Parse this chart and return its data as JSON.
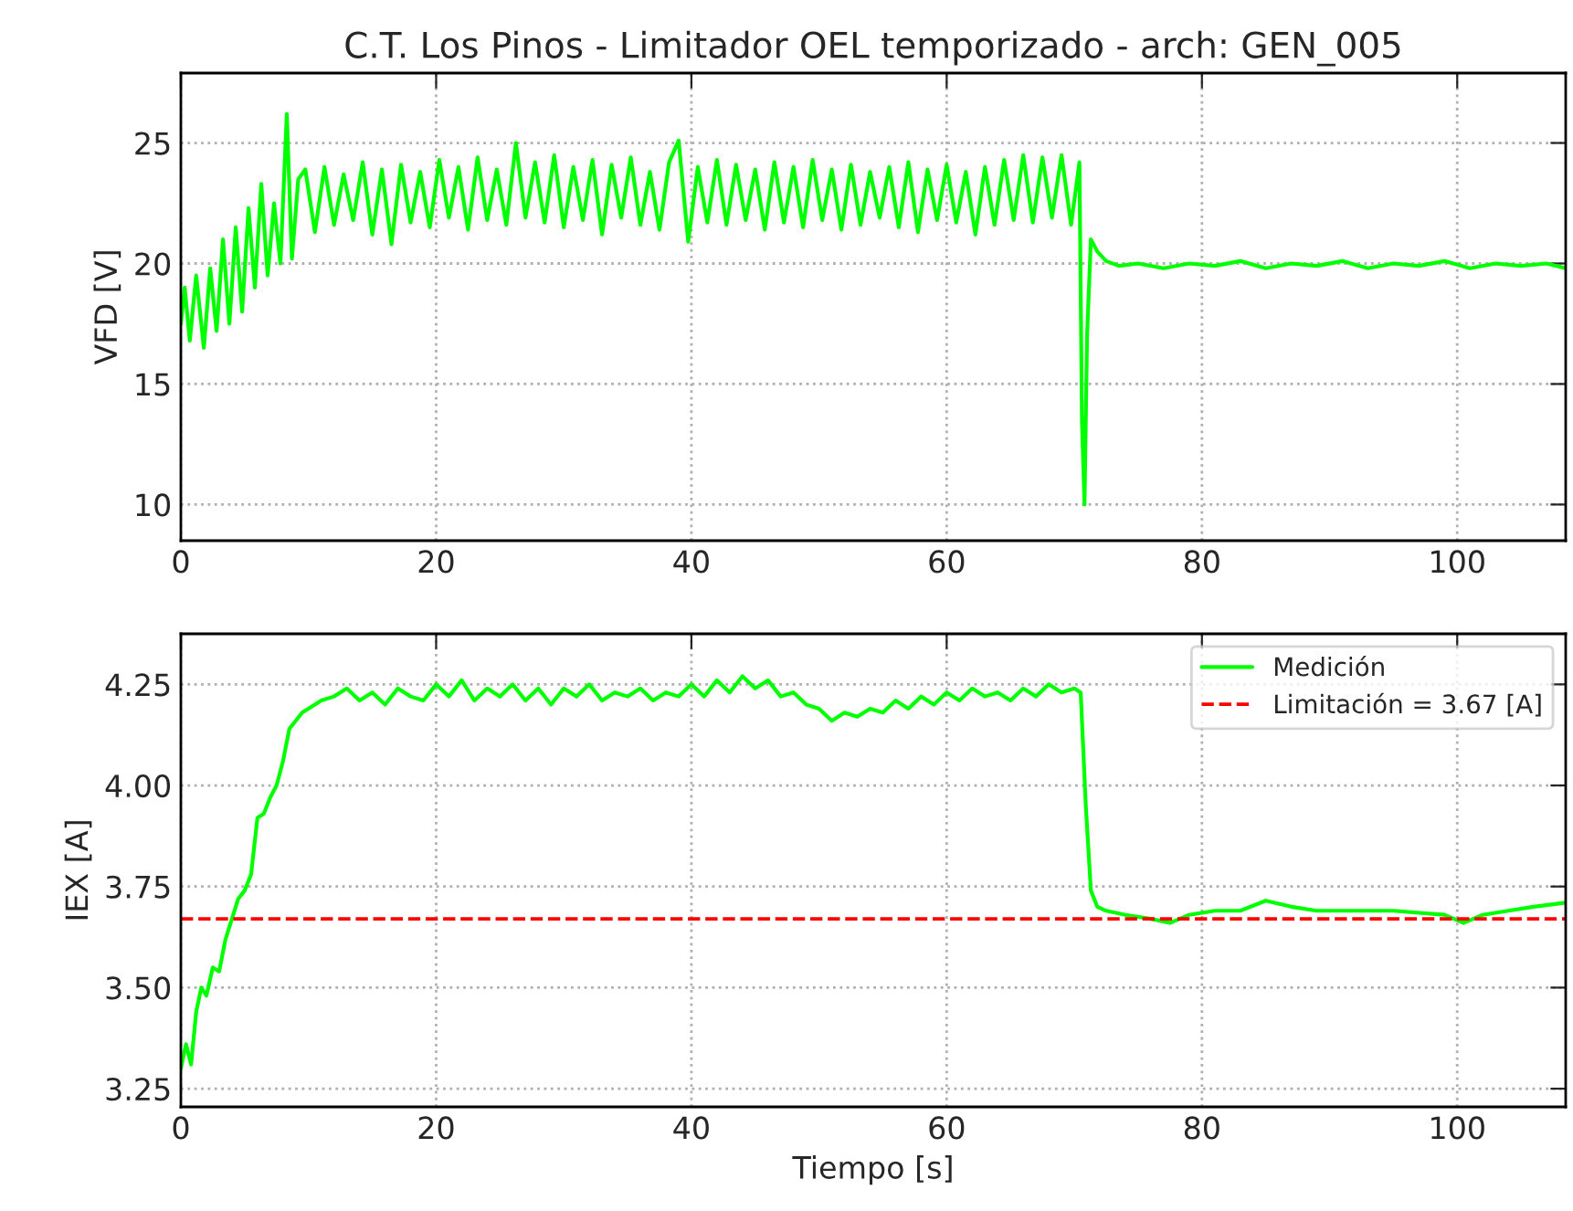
{
  "chart_data": [
    {
      "type": "line",
      "title": "C.T. Los Pinos - Limitador OEL temporizado - arch: GEN_005",
      "ylabel": "VFD [V]",
      "series": [
        {
          "color": "#00ff00",
          "x": [
            0,
            0.3,
            0.7,
            1.2,
            1.8,
            2.3,
            2.8,
            3.3,
            3.8,
            4.3,
            4.8,
            5.3,
            5.8,
            6.3,
            6.8,
            7.3,
            7.8,
            8.3,
            8.7,
            9.2,
            9.75,
            10.5,
            11.25,
            12,
            12.75,
            13.5,
            14.25,
            15,
            15.75,
            16.5,
            17.25,
            18,
            18.75,
            19.5,
            20.25,
            21,
            21.75,
            22.5,
            23.25,
            24,
            24.75,
            25.5,
            26.25,
            27,
            27.75,
            28.5,
            29.25,
            30,
            30.75,
            31.5,
            32.25,
            33,
            33.75,
            34.5,
            35.25,
            36,
            36.75,
            37.5,
            38.25,
            39,
            39.75,
            40.5,
            41.25,
            42,
            42.75,
            43.5,
            44.25,
            45,
            45.75,
            46.5,
            47.25,
            48,
            48.75,
            49.5,
            50.25,
            51,
            51.75,
            52.5,
            53.25,
            54,
            54.75,
            55.5,
            56.25,
            57,
            57.75,
            58.5,
            59.25,
            60,
            60.75,
            61.5,
            62.25,
            63,
            63.75,
            64.5,
            65.25,
            66,
            66.75,
            67.5,
            68.25,
            69,
            69.75,
            70.4,
            70.6,
            70.8,
            71.0,
            71.3,
            71.8,
            72.5,
            73.5,
            75,
            77,
            79,
            81,
            83,
            85,
            87,
            89,
            91,
            93,
            95,
            97,
            99,
            101,
            103,
            105,
            107,
            108.5
          ],
          "values": [
            17.5,
            19.0,
            16.8,
            19.5,
            16.5,
            19.8,
            17.2,
            21.0,
            17.5,
            21.5,
            18.0,
            22.3,
            19.0,
            23.3,
            19.5,
            22.5,
            20.0,
            26.2,
            20.2,
            23.5,
            23.9,
            21.3,
            24.0,
            21.6,
            23.7,
            21.8,
            24.2,
            21.2,
            23.9,
            20.8,
            24.1,
            21.7,
            23.8,
            21.5,
            24.3,
            21.9,
            24.0,
            21.4,
            24.4,
            21.8,
            23.9,
            21.6,
            25.0,
            21.9,
            24.2,
            21.7,
            24.5,
            21.5,
            24.0,
            21.8,
            24.3,
            21.2,
            24.1,
            21.9,
            24.4,
            21.6,
            23.8,
            21.4,
            24.2,
            25.1,
            20.9,
            24.0,
            21.7,
            24.3,
            21.6,
            24.1,
            21.8,
            23.9,
            21.4,
            24.2,
            21.7,
            24.0,
            21.5,
            24.3,
            21.8,
            23.9,
            21.4,
            24.1,
            21.6,
            23.8,
            21.9,
            24.0,
            21.5,
            24.2,
            21.3,
            23.9,
            21.8,
            24.1,
            21.7,
            23.8,
            21.2,
            24.0,
            21.6,
            24.3,
            21.8,
            24.5,
            21.7,
            24.4,
            21.9,
            24.5,
            21.6,
            24.2,
            13.5,
            10.0,
            17.0,
            21.0,
            20.5,
            20.1,
            19.9,
            20.0,
            19.8,
            20.0,
            19.9,
            20.1,
            19.8,
            20.0,
            19.9,
            20.1,
            19.8,
            20.0,
            19.9,
            20.1,
            19.8,
            20.0,
            19.9,
            20.0,
            19.8
          ]
        }
      ],
      "xlim": [
        0,
        108.5
      ],
      "xticks": [
        0,
        20,
        40,
        60,
        80,
        100
      ],
      "ylim": [
        8.5,
        27.9
      ],
      "yticks": [
        10,
        15,
        20,
        25
      ],
      "grid": true,
      "line_style": "solid"
    },
    {
      "type": "line",
      "xlabel": "Tiempo [s]",
      "ylabel": "IEX [A]",
      "series": [
        {
          "name": "Medición",
          "color": "#00ff00",
          "x": [
            0,
            0.4,
            0.8,
            1.2,
            1.6,
            2.0,
            2.5,
            3.0,
            3.5,
            4.0,
            4.5,
            5.0,
            5.5,
            6.0,
            6.5,
            7.0,
            7.5,
            8.0,
            8.5,
            9.0,
            9.5,
            10,
            11,
            12,
            13,
            14,
            15,
            16,
            17,
            18,
            19,
            20,
            21,
            22,
            23,
            24,
            25,
            26,
            27,
            28,
            29,
            30,
            31,
            32,
            33,
            34,
            35,
            36,
            37,
            38,
            39,
            40,
            41,
            42,
            43,
            44,
            45,
            46,
            47,
            48,
            49,
            50,
            51,
            52,
            53,
            54,
            55,
            56,
            57,
            58,
            59,
            60,
            61,
            62,
            63,
            64,
            65,
            66,
            67,
            68,
            69,
            70,
            70.5,
            70.9,
            71.3,
            71.8,
            72.5,
            74,
            76,
            77.5,
            79,
            81,
            83,
            85,
            87,
            89,
            91,
            93,
            95,
            97,
            99,
            100.5,
            102,
            104,
            106,
            108.5
          ],
          "values": [
            3.3,
            3.36,
            3.31,
            3.44,
            3.5,
            3.48,
            3.55,
            3.54,
            3.62,
            3.67,
            3.72,
            3.74,
            3.78,
            3.92,
            3.93,
            3.97,
            4.0,
            4.06,
            4.14,
            4.16,
            4.18,
            4.19,
            4.21,
            4.22,
            4.24,
            4.21,
            4.23,
            4.2,
            4.24,
            4.22,
            4.21,
            4.25,
            4.22,
            4.26,
            4.21,
            4.24,
            4.22,
            4.25,
            4.21,
            4.24,
            4.2,
            4.24,
            4.22,
            4.25,
            4.21,
            4.23,
            4.22,
            4.24,
            4.21,
            4.23,
            4.22,
            4.25,
            4.22,
            4.26,
            4.23,
            4.27,
            4.24,
            4.26,
            4.22,
            4.23,
            4.2,
            4.19,
            4.16,
            4.18,
            4.17,
            4.19,
            4.18,
            4.21,
            4.19,
            4.22,
            4.2,
            4.23,
            4.21,
            4.24,
            4.22,
            4.23,
            4.21,
            4.24,
            4.22,
            4.25,
            4.23,
            4.24,
            4.23,
            3.95,
            3.74,
            3.7,
            3.69,
            3.68,
            3.67,
            3.66,
            3.68,
            3.69,
            3.69,
            3.715,
            3.7,
            3.69,
            3.69,
            3.69,
            3.69,
            3.685,
            3.68,
            3.66,
            3.68,
            3.69,
            3.7,
            3.71
          ]
        }
      ],
      "ref_lines": [
        {
          "axis": "y",
          "value": 3.67,
          "label": "Limitación = 3.67 [A]",
          "color": "#ff0000",
          "line_style": "dashed"
        }
      ],
      "xlim": [
        0,
        108.5
      ],
      "xticks": [
        0,
        20,
        40,
        60,
        80,
        100
      ],
      "ylim": [
        3.205,
        4.375
      ],
      "yticks": [
        3.25,
        {
          "value": 3.5,
          "label": "3.50"
        },
        3.75,
        {
          "value": 4.0,
          "label": "4.00"
        },
        4.25
      ],
      "grid": true,
      "legend": "top right",
      "line_style": "solid"
    }
  ]
}
